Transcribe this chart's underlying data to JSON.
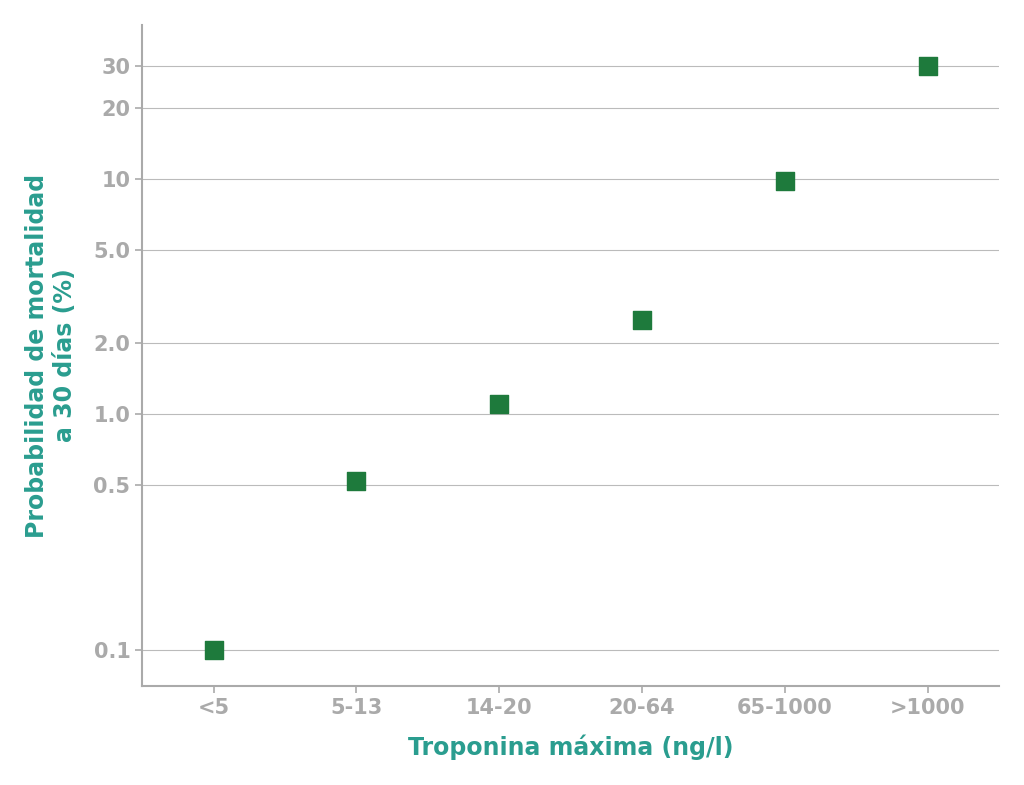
{
  "x_labels": [
    "<5",
    "5-13",
    "14-20",
    "20-64",
    "65-1000",
    ">1000"
  ],
  "y_values": [
    0.1,
    0.52,
    1.1,
    2.5,
    9.8,
    30.0
  ],
  "marker_color": "#1e7a3c",
  "marker_size": 180,
  "marker_shape": "s",
  "xlabel": "Troponina máxima (ng/l)",
  "ylabel_line1": "Probabilidad de mortalidad",
  "ylabel_line2": "a 30 días (%)",
  "axis_label_color": "#2a9d8f",
  "tick_label_color": "#1a1a1a",
  "yticks": [
    0.1,
    0.5,
    1.0,
    2.0,
    5.0,
    10,
    20,
    30
  ],
  "ytick_labels": [
    "0.1",
    "0.5",
    "1.0",
    "2.0",
    "5.0",
    "10",
    "20",
    "30"
  ],
  "grid_color": "#bbbbbb",
  "spine_color": "#aaaaaa",
  "background_color": "#ffffff",
  "label_fontsize": 17,
  "tick_fontsize": 15,
  "ylim_min": 0.07,
  "ylim_max": 45
}
